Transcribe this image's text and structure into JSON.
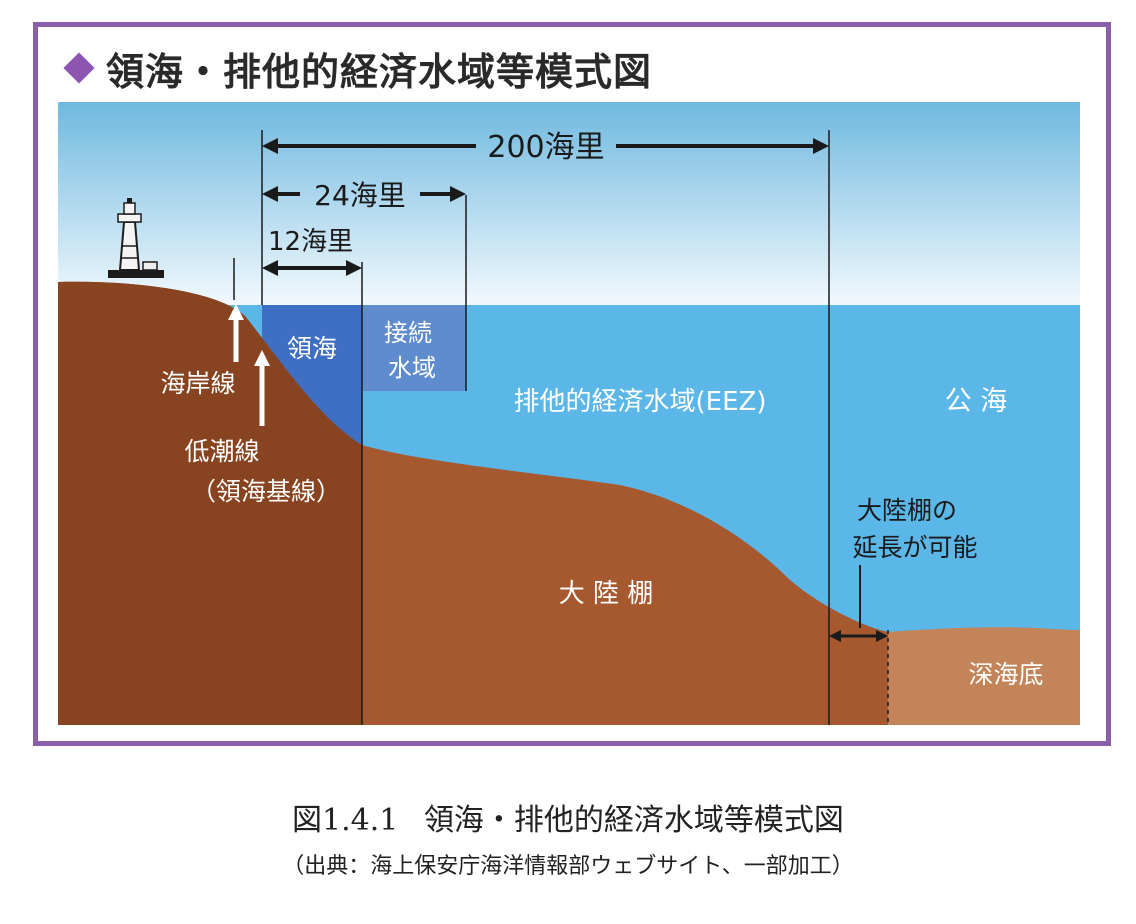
{
  "title": "領海・排他的経済水域等模式図",
  "distances": {
    "nm200": "200海里",
    "nm24": "24海里",
    "nm12": "12海里"
  },
  "zones": {
    "territorial_sea": "領海",
    "contiguous_line1": "接続",
    "contiguous_line2": "水域",
    "eez": "排他的経済水域(EEZ)",
    "high_seas": "公 海"
  },
  "landforms": {
    "coastline": "海岸線",
    "low_water_line": "低潮線",
    "baseline": "（領海基線）",
    "continental_shelf": "大 陸 棚",
    "shelf_extension_line1": "大陸棚の",
    "shelf_extension_line2": "延長が可能",
    "deep_seabed": "深海底"
  },
  "caption": {
    "figure_number": "図1.4.1",
    "figure_title": "領海・排他的経済水域等模式図",
    "source": "（出典：海上保安庁海洋情報部ウェブサイト、一部加工）"
  },
  "colors": {
    "frame": "#8a5fa8",
    "sky_top": "#6fb9df",
    "sky_bottom": "#f2f9fd",
    "sea": "#5ab7e7",
    "territorial_sea": "#3f6fc2",
    "contiguous_zone": "#5f8ccf",
    "land_dark": "#884420",
    "land": "#a6582e",
    "deep_seabed": "#c28458"
  }
}
